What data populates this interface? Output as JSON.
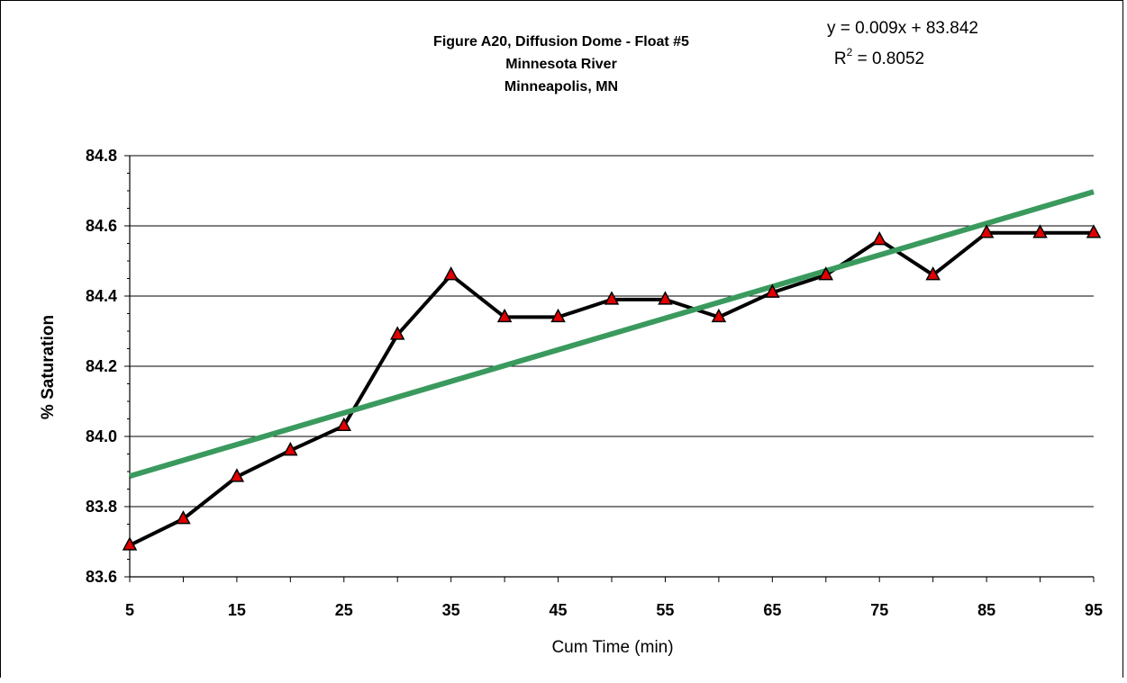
{
  "chart_data": {
    "type": "line",
    "title_lines": [
      "Figure A20, Diffusion Dome - Float #5",
      "Minnesota River",
      "Minneapolis, MN"
    ],
    "xlabel": "Cum Time (min)",
    "ylabel": "% Saturation",
    "xlim": [
      5,
      95
    ],
    "ylim": [
      83.6,
      84.8
    ],
    "x_ticks": [
      5,
      15,
      25,
      35,
      45,
      55,
      65,
      75,
      85,
      95
    ],
    "y_ticks": [
      83.6,
      83.8,
      84.0,
      84.2,
      84.4,
      84.6,
      84.8
    ],
    "grid": "horizontal major",
    "legend": "none",
    "series": [
      {
        "x": [
          5,
          10,
          15,
          20,
          25,
          30,
          35,
          40,
          45,
          50,
          55,
          60,
          65,
          70,
          75,
          80,
          85,
          90,
          95
        ],
        "values": [
          83.69,
          83.765,
          83.885,
          83.96,
          84.03,
          84.29,
          84.46,
          84.34,
          84.34,
          84.39,
          84.39,
          84.34,
          84.41,
          84.46,
          84.56,
          84.46,
          84.58,
          84.58,
          84.58
        ],
        "line_color": "#000000",
        "marker": "triangle",
        "marker_color": "#e00000"
      }
    ],
    "trendline": {
      "slope": 0.009,
      "intercept": 83.842,
      "color": "#3a9a5e",
      "equation": "y = 0.009x + 83.842",
      "r2_prefix": "R",
      "r2_sup": "2",
      "r2_value": " = 0.8052"
    }
  }
}
